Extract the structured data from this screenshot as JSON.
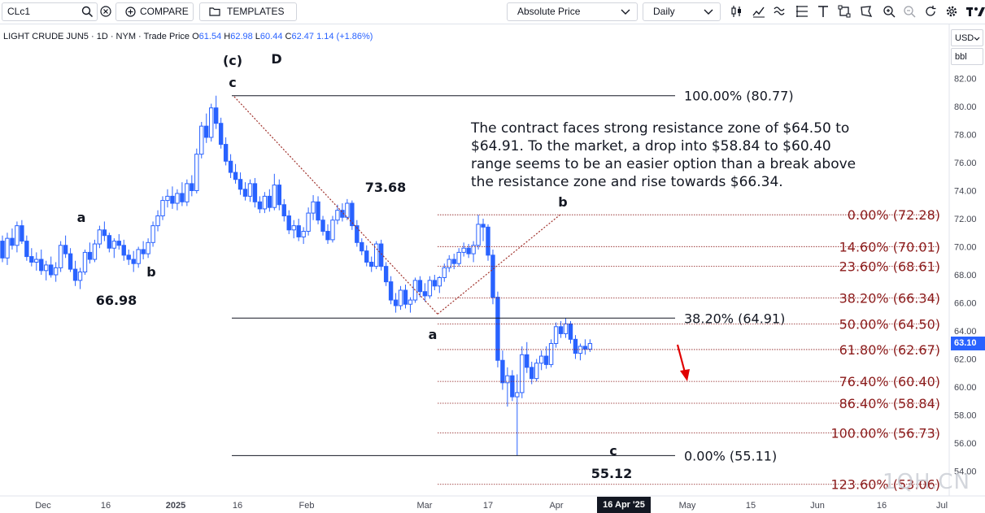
{
  "toolbar": {
    "symbol": "CLc1",
    "compare_label": "COMPARE",
    "templates_label": "TEMPLATES",
    "price_type": "Absolute Price",
    "interval": "Daily",
    "icons": [
      "search-icon",
      "clear-icon",
      "plus-circle-icon",
      "folder-icon",
      "chevron-down-icon",
      "candles-icon",
      "indicators-icon",
      "waves-icon",
      "fib-icon",
      "text-tool-icon",
      "shapes-icon",
      "annotation-icon",
      "zoom-in-icon",
      "zoom-out-icon",
      "reset-icon",
      "settings-icon",
      "logo-icon"
    ]
  },
  "header": {
    "instrument": "LIGHT CRUDE JUN5",
    "meta": "· 1D · NYM · Trade Price",
    "o_label": "O",
    "o_value": "61.54",
    "h_label": "H",
    "h_value": "62.98",
    "l_label": "L",
    "l_value": "60.44",
    "c_label": "C",
    "c_value": "62.47",
    "change": "1.14 (+1.86%)"
  },
  "axis": {
    "currency": "USD",
    "unit": "bbl",
    "last_price": "63.10",
    "cursor_date": "16 Apr '25"
  },
  "watermark": "1QH.CN",
  "colors": {
    "candle": "#2962ff",
    "fib_red": "#8b1a1a",
    "arrow": "#e00000",
    "trend_dotted": "#a0322c"
  },
  "chart_data": {
    "type": "candlestick",
    "title": "LIGHT CRUDE JUN5",
    "ylim": [
      52.0,
      84.0
    ],
    "y_ticks": [
      "54.00",
      "56.00",
      "58.00",
      "60.00",
      "62.00",
      "64.00",
      "66.00",
      "68.00",
      "70.00",
      "72.00",
      "74.00",
      "76.00",
      "78.00",
      "80.00",
      "82.00"
    ],
    "x_ticks": [
      "Dec",
      "16",
      "2025",
      "16",
      "Feb",
      "Mar",
      "17",
      "Apr",
      "May",
      "15",
      "Jun",
      "16",
      "Jul"
    ],
    "candles": [
      [
        70.4,
        70.8,
        68.9,
        69.2
      ],
      [
        69.2,
        71.0,
        68.7,
        70.6
      ],
      [
        70.6,
        71.3,
        69.8,
        70.1
      ],
      [
        70.1,
        71.8,
        69.6,
        71.5
      ],
      [
        71.5,
        71.9,
        70.2,
        70.4
      ],
      [
        70.4,
        70.8,
        69.0,
        69.3
      ],
      [
        69.3,
        69.9,
        68.6,
        68.9
      ],
      [
        68.9,
        69.6,
        68.3,
        69.1
      ],
      [
        69.1,
        69.8,
        68.0,
        68.3
      ],
      [
        68.3,
        69.0,
        67.6,
        68.7
      ],
      [
        68.7,
        69.3,
        67.8,
        68.0
      ],
      [
        68.0,
        68.9,
        67.5,
        68.5
      ],
      [
        68.5,
        70.4,
        68.2,
        70.1
      ],
      [
        70.1,
        70.8,
        69.2,
        69.5
      ],
      [
        69.5,
        69.9,
        68.2,
        68.4
      ],
      [
        68.4,
        69.0,
        67.2,
        67.6
      ],
      [
        67.6,
        68.5,
        66.98,
        68.2
      ],
      [
        68.2,
        69.8,
        68.0,
        69.6
      ],
      [
        69.6,
        70.3,
        68.8,
        69.1
      ],
      [
        69.1,
        70.5,
        68.9,
        70.2
      ],
      [
        70.2,
        71.5,
        69.9,
        71.2
      ],
      [
        71.2,
        71.8,
        70.4,
        70.8
      ],
      [
        70.8,
        71.0,
        69.6,
        69.9
      ],
      [
        69.9,
        70.6,
        69.2,
        70.4
      ],
      [
        70.4,
        70.9,
        69.8,
        70.1
      ],
      [
        70.1,
        70.5,
        69.0,
        69.4
      ],
      [
        69.4,
        69.8,
        68.7,
        69.1
      ],
      [
        69.1,
        69.7,
        68.2,
        68.8
      ],
      [
        68.8,
        70.0,
        68.5,
        69.8
      ],
      [
        69.8,
        70.4,
        69.1,
        69.5
      ],
      [
        69.5,
        70.6,
        69.2,
        70.3
      ],
      [
        70.3,
        71.8,
        70.0,
        71.5
      ],
      [
        71.5,
        72.6,
        71.1,
        72.2
      ],
      [
        72.2,
        73.6,
        71.9,
        73.3
      ],
      [
        73.3,
        74.1,
        72.8,
        73.6
      ],
      [
        73.6,
        74.3,
        72.7,
        73.1
      ],
      [
        73.1,
        74.1,
        72.6,
        73.8
      ],
      [
        73.8,
        74.6,
        72.9,
        73.2
      ],
      [
        73.2,
        74.8,
        72.9,
        74.5
      ],
      [
        74.5,
        75.1,
        73.6,
        74.0
      ],
      [
        74.0,
        77.0,
        73.8,
        76.6
      ],
      [
        76.6,
        78.9,
        76.3,
        78.6
      ],
      [
        78.6,
        79.5,
        77.4,
        77.8
      ],
      [
        77.8,
        80.2,
        77.5,
        79.9
      ],
      [
        79.9,
        80.77,
        78.4,
        78.8
      ],
      [
        78.8,
        79.2,
        77.0,
        77.3
      ],
      [
        77.3,
        77.8,
        75.8,
        76.1
      ],
      [
        76.1,
        76.6,
        74.9,
        75.3
      ],
      [
        75.3,
        75.9,
        74.5,
        74.8
      ],
      [
        74.8,
        75.3,
        73.7,
        74.1
      ],
      [
        74.1,
        74.6,
        73.3,
        73.6
      ],
      [
        73.6,
        74.8,
        73.2,
        74.5
      ],
      [
        74.5,
        74.9,
        72.8,
        73.2
      ],
      [
        73.2,
        73.6,
        72.4,
        72.7
      ],
      [
        72.7,
        73.9,
        72.4,
        73.6
      ],
      [
        73.6,
        74.1,
        72.5,
        72.8
      ],
      [
        72.8,
        75.2,
        72.6,
        74.4
      ],
      [
        74.4,
        74.8,
        72.6,
        73.0
      ],
      [
        73.0,
        73.4,
        71.8,
        72.2
      ],
      [
        72.2,
        72.6,
        70.9,
        71.2
      ],
      [
        71.2,
        71.9,
        70.6,
        71.5
      ],
      [
        71.5,
        72.0,
        70.4,
        70.7
      ],
      [
        70.7,
        71.4,
        70.2,
        71.1
      ],
      [
        71.1,
        72.8,
        70.8,
        72.4
      ],
      [
        72.4,
        73.68,
        71.9,
        73.2
      ],
      [
        73.2,
        73.6,
        71.6,
        71.9
      ],
      [
        71.9,
        72.2,
        70.8,
        71.1
      ],
      [
        71.1,
        71.6,
        70.2,
        70.5
      ],
      [
        70.5,
        72.2,
        70.3,
        71.9
      ],
      [
        71.9,
        73.0,
        71.6,
        72.6
      ],
      [
        72.6,
        73.1,
        71.8,
        72.1
      ],
      [
        72.1,
        73.4,
        71.9,
        73.1
      ],
      [
        73.1,
        73.3,
        71.2,
        71.5
      ],
      [
        71.5,
        71.9,
        70.0,
        70.3
      ],
      [
        70.3,
        70.6,
        69.4,
        69.7
      ],
      [
        69.7,
        70.1,
        68.6,
        68.9
      ],
      [
        68.9,
        69.3,
        68.2,
        68.6
      ],
      [
        68.6,
        70.4,
        68.4,
        70.2
      ],
      [
        70.2,
        70.5,
        68.3,
        68.6
      ],
      [
        68.6,
        68.9,
        67.2,
        67.5
      ],
      [
        67.5,
        67.9,
        65.9,
        66.2
      ],
      [
        66.2,
        66.7,
        65.3,
        65.8
      ],
      [
        65.8,
        67.2,
        65.5,
        66.9
      ],
      [
        66.9,
        67.3,
        65.6,
        65.9
      ],
      [
        65.9,
        66.4,
        65.3,
        66.2
      ],
      [
        66.2,
        67.8,
        66.0,
        67.6
      ],
      [
        67.6,
        67.9,
        66.4,
        66.8
      ],
      [
        66.8,
        67.4,
        66.1,
        66.5
      ],
      [
        66.5,
        67.9,
        66.3,
        67.6
      ],
      [
        67.6,
        68.0,
        66.9,
        67.2
      ],
      [
        67.2,
        67.9,
        66.7,
        67.8
      ],
      [
        67.8,
        68.8,
        67.5,
        68.5
      ],
      [
        68.5,
        69.4,
        68.2,
        69.1
      ],
      [
        69.1,
        69.5,
        68.4,
        68.8
      ],
      [
        68.8,
        69.9,
        68.6,
        69.6
      ],
      [
        69.6,
        70.3,
        69.3,
        69.9
      ],
      [
        69.9,
        70.2,
        69.2,
        69.5
      ],
      [
        69.5,
        70.4,
        68.9,
        70.1
      ],
      [
        70.1,
        72.28,
        69.8,
        71.6
      ],
      [
        71.6,
        72.0,
        70.4,
        71.4
      ],
      [
        71.4,
        71.6,
        69.0,
        69.4
      ],
      [
        69.4,
        69.8,
        65.9,
        66.4
      ],
      [
        66.4,
        66.8,
        61.4,
        61.9
      ],
      [
        61.9,
        62.6,
        59.8,
        60.3
      ],
      [
        60.3,
        61.4,
        58.6,
        60.8
      ],
      [
        60.8,
        61.2,
        59.0,
        59.3
      ],
      [
        59.3,
        60.9,
        55.12,
        59.6
      ],
      [
        59.6,
        62.9,
        59.2,
        62.3
      ],
      [
        62.3,
        63.2,
        61.0,
        61.4
      ],
      [
        61.4,
        61.8,
        60.2,
        60.6
      ],
      [
        60.6,
        62.0,
        60.4,
        61.7
      ],
      [
        61.7,
        62.6,
        61.2,
        62.2
      ],
      [
        62.2,
        62.9,
        61.3,
        61.6
      ],
      [
        61.6,
        63.4,
        61.4,
        63.1
      ],
      [
        63.1,
        64.6,
        62.8,
        64.3
      ],
      [
        64.3,
        64.7,
        63.5,
        63.8
      ],
      [
        63.8,
        64.91,
        63.5,
        64.5
      ],
      [
        64.5,
        64.7,
        63.1,
        63.4
      ],
      [
        63.4,
        63.7,
        62.0,
        62.4
      ],
      [
        62.4,
        63.1,
        61.9,
        62.9
      ],
      [
        62.9,
        63.4,
        62.3,
        62.7
      ],
      [
        62.7,
        63.4,
        62.5,
        63.1
      ]
    ],
    "fib_levels": [
      {
        "label": "0.00% (72.28)",
        "price": 72.28
      },
      {
        "label": "14.60% (70.01)",
        "price": 70.01
      },
      {
        "label": "23.60% (68.61)",
        "price": 68.61
      },
      {
        "label": "38.20% (66.34)",
        "price": 66.34
      },
      {
        "label": "50.00% (64.50)",
        "price": 64.5
      },
      {
        "label": "61.80% (62.67)",
        "price": 62.67
      },
      {
        "label": "76.40% (60.40)",
        "price": 60.4
      },
      {
        "label": "86.40% (58.84)",
        "price": 58.84
      },
      {
        "label": "100.00% (56.73)",
        "price": 56.73
      },
      {
        "label": "123.60% (53.06)",
        "price": 53.06
      }
    ],
    "black_levels": [
      {
        "label": "100.00% (80.77)",
        "price": 80.77
      },
      {
        "label": "38.20% (64.91)",
        "price": 64.91
      },
      {
        "label": "0.00% (55.11)",
        "price": 55.11
      }
    ],
    "annotation": "The contract faces strong resistance zone of $64.50 to $64.91. To the market, a drop into $58.84 to $60.40 range seems to be an easier option than a break above the resistance zone and rise towards $66.34.",
    "price_labels": [
      {
        "text": "73.68",
        "price": 73.68
      },
      {
        "text": "66.98",
        "price": 66.98
      },
      {
        "text": "55.12",
        "price": 55.12
      }
    ],
    "wave_labels": [
      {
        "text": "(c)",
        "price": 83.0
      },
      {
        "text": "D",
        "price": 83.1
      },
      {
        "text": "c",
        "price": 81.6
      },
      {
        "text": "a",
        "price": 72.2
      },
      {
        "text": "b",
        "price": 67.8
      },
      {
        "text": "a",
        "price": 64.7
      },
      {
        "text": "b",
        "price": 73.2
      },
      {
        "text": "c",
        "price": 56.2
      }
    ]
  }
}
